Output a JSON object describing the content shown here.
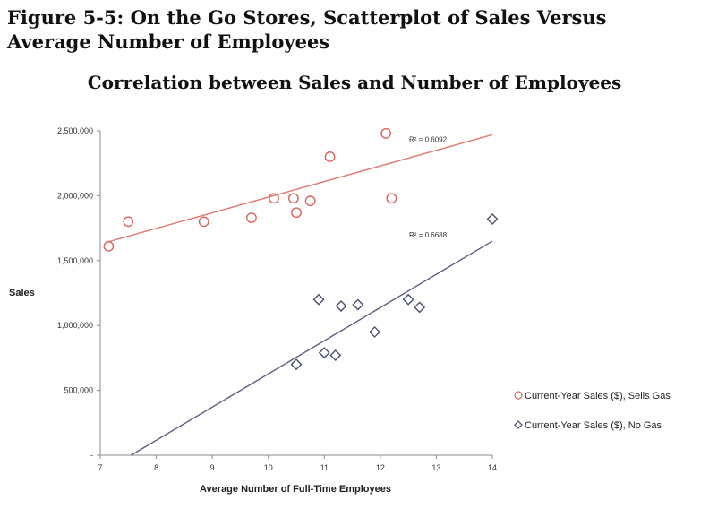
{
  "figure_title": "Figure 5-5: On the Go Stores, Scatterplot of Sales Versus Average Number of Employees",
  "chart_data": {
    "type": "scatter",
    "title": "Correlation between Sales and Number of Employees",
    "xlabel": "Average Number of Full-Time Employees",
    "ylabel": "Sales",
    "xlim": [
      7,
      14
    ],
    "ylim": [
      0,
      2500000
    ],
    "x_ticks": [
      "7",
      "8",
      "9",
      "10",
      "11",
      "12",
      "13",
      "14"
    ],
    "y_ticks": [
      "2,500,000",
      "2,000,000",
      "1,500,000",
      "1,000,000",
      "500,000",
      "-"
    ],
    "legend_position": "right",
    "series": [
      {
        "name": "Current-Year Sales ($), Sells Gas",
        "marker": "circle",
        "color": "#d9645a",
        "trend_color": "#e07a6c",
        "r2_label": "R² = 0.6092",
        "trendline": {
          "x": [
            7.1,
            14
          ],
          "y": [
            1640000,
            2470000
          ]
        },
        "points": [
          {
            "x": 7.15,
            "y": 1610000
          },
          {
            "x": 7.5,
            "y": 1800000
          },
          {
            "x": 8.85,
            "y": 1800000
          },
          {
            "x": 9.7,
            "y": 1830000
          },
          {
            "x": 10.1,
            "y": 1980000
          },
          {
            "x": 10.45,
            "y": 1980000
          },
          {
            "x": 10.5,
            "y": 1870000
          },
          {
            "x": 10.75,
            "y": 1960000
          },
          {
            "x": 11.1,
            "y": 2300000
          },
          {
            "x": 12.1,
            "y": 2480000
          },
          {
            "x": 12.2,
            "y": 1980000
          }
        ]
      },
      {
        "name": "Current-Year Sales ($), No Gas",
        "marker": "diamond",
        "color": "#4a4f6e",
        "trend_color": "#5a5f82",
        "r2_label": "R² = 0.6688",
        "trendline": {
          "x": [
            7.55,
            14
          ],
          "y": [
            0,
            1650000
          ]
        },
        "points": [
          {
            "x": 10.5,
            "y": 700000
          },
          {
            "x": 10.9,
            "y": 1200000
          },
          {
            "x": 11.0,
            "y": 790000
          },
          {
            "x": 11.2,
            "y": 770000
          },
          {
            "x": 11.3,
            "y": 1150000
          },
          {
            "x": 11.6,
            "y": 1160000
          },
          {
            "x": 11.9,
            "y": 950000
          },
          {
            "x": 12.5,
            "y": 1200000
          },
          {
            "x": 12.7,
            "y": 1140000
          },
          {
            "x": 14.0,
            "y": 1820000
          }
        ]
      }
    ]
  }
}
